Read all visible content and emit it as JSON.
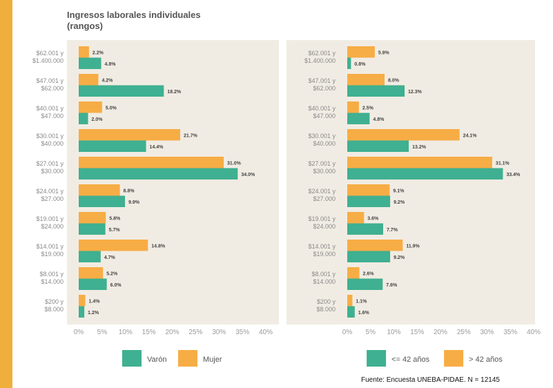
{
  "title": "Ingresos laborales individuales\n(rangos)",
  "source": "Fuente: Encuesta UNEBA-PIDAE. N = 12145",
  "colors": {
    "teal": "#3fb091",
    "orange": "#f7ad45",
    "panel": "#f1ece3",
    "card": "#ffffff",
    "bg": "#f0ae3c"
  },
  "categories": [
    [
      "$62.001 y",
      "$1.400.000"
    ],
    [
      "$47.001 y",
      "$62.000"
    ],
    [
      "$40.001 y",
      "$47.000"
    ],
    [
      "$30.001 y",
      "$40.000"
    ],
    [
      "$27.001 y",
      "$30.000"
    ],
    [
      "$24.001 y",
      "$27.000"
    ],
    [
      "$19.001 y",
      "$24.000"
    ],
    [
      "$14.001 y",
      "$19.000"
    ],
    [
      "$8.001 y",
      "$14.000"
    ],
    [
      "$200 y",
      "$8.000"
    ]
  ],
  "x_ticks": [
    "0%",
    "5%",
    "10%",
    "15%",
    "20%",
    "25%",
    "30%",
    "35%",
    "40%"
  ],
  "chart_data": [
    {
      "type": "bar",
      "orientation": "horizontal",
      "xlim": [
        0,
        40
      ],
      "categories": [
        "$62.001 y $1.400.000",
        "$47.001 y $62.000",
        "$40.001 y $47.000",
        "$30.001 y $40.000",
        "$27.001 y $30.000",
        "$24.001 y $27.000",
        "$19.001 y $24.000",
        "$14.001 y $19.000",
        "$8.001 y $14.000",
        "$200 y $8.000"
      ],
      "series": [
        {
          "name": "Mujer",
          "color": "#f7ad45",
          "values": [
            2.2,
            4.2,
            5.0,
            21.7,
            31.0,
            8.8,
            5.8,
            14.8,
            5.2,
            1.4
          ],
          "labels": [
            "2.2%",
            "4.2%",
            "5.0%",
            "21.7%",
            "31.0%",
            "8.8%",
            "5.8%",
            "14.8%",
            "5.2%",
            "1.4%"
          ]
        },
        {
          "name": "Varón",
          "color": "#3fb091",
          "values": [
            4.8,
            18.2,
            2.0,
            14.4,
            34.0,
            9.9,
            5.7,
            4.7,
            6.0,
            1.2
          ],
          "labels": [
            "4.8%",
            "18.2%",
            "2.0%",
            "14.4%",
            "34.0%",
            "9.9%",
            "5.7%",
            "4.7%",
            "6.0%",
            "1.2%"
          ]
        }
      ],
      "legend": [
        "Varón",
        "Mujer"
      ]
    },
    {
      "type": "bar",
      "orientation": "horizontal",
      "xlim": [
        0,
        40
      ],
      "categories": [
        "$62.001 y $1.400.000",
        "$47.001 y $62.000",
        "$40.001 y $47.000",
        "$30.001 y $40.000",
        "$27.001 y $30.000",
        "$24.001 y $27.000",
        "$19.001 y $24.000",
        "$14.001 y $19.000",
        "$8.001 y $14.000",
        "$200 y $8.000"
      ],
      "series": [
        {
          "name": "> 42 años",
          "color": "#f7ad45",
          "values": [
            5.9,
            8.0,
            2.5,
            24.1,
            31.1,
            9.1,
            3.6,
            11.9,
            2.6,
            1.1
          ],
          "labels": [
            "5.9%",
            "8.0%",
            "2.5%",
            "24.1%",
            "31.1%",
            "9.1%",
            "3.6%",
            "11.9%",
            "2.6%",
            "1.1%"
          ]
        },
        {
          "name": "<= 42 años",
          "color": "#3fb091",
          "values": [
            0.8,
            12.3,
            4.8,
            13.2,
            33.4,
            9.2,
            7.7,
            9.2,
            7.6,
            1.6
          ],
          "labels": [
            "0.8%",
            "12.3%",
            "4.8%",
            "13.2%",
            "33.4%",
            "9.2%",
            "7.7%",
            "9.2%",
            "7.6%",
            "1.6%"
          ]
        }
      ],
      "legend": [
        "<= 42 años",
        "> 42 años"
      ]
    }
  ]
}
